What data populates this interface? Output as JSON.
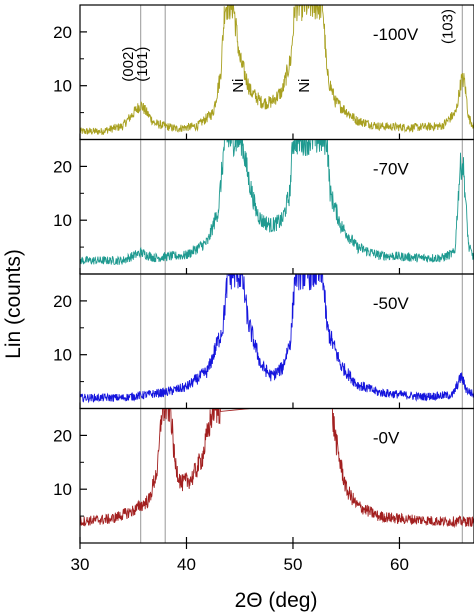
{
  "chart_data": {
    "type": "line",
    "xlabel": "2Θ (deg)",
    "ylabel": "Lin (counts)",
    "xlim": [
      30,
      67
    ],
    "x_ticks": [
      30,
      40,
      50,
      60
    ],
    "x_tick_labels": [
      "30",
      "40",
      "50",
      "60"
    ],
    "panel_ylim": [
      0,
      25
    ],
    "y_ticks": [
      10,
      20
    ],
    "y_tick_labels": [
      "10",
      "20"
    ],
    "grid": false,
    "legend": "none",
    "reference_lines_x": [
      35.7,
      38.0,
      65.9
    ],
    "series": [
      {
        "name": "-100V",
        "color": "#a8a020",
        "points": [
          [
            30,
            1.5
          ],
          [
            32,
            1.5
          ],
          [
            34,
            2.5
          ],
          [
            35.7,
            6.5
          ],
          [
            37,
            3
          ],
          [
            39,
            2
          ],
          [
            41,
            2.5
          ],
          [
            42.5,
            5
          ],
          [
            43.2,
            12
          ],
          [
            43.6,
            25
          ],
          [
            44.4,
            25
          ],
          [
            45,
            15
          ],
          [
            46,
            9
          ],
          [
            47,
            7
          ],
          [
            47.5,
            6.8
          ],
          [
            48,
            7
          ],
          [
            49,
            9
          ],
          [
            49.8,
            15
          ],
          [
            50.2,
            25
          ],
          [
            52.8,
            25
          ],
          [
            53.2,
            12
          ],
          [
            54,
            7
          ],
          [
            56,
            3.5
          ],
          [
            58,
            2.5
          ],
          [
            61,
            2.2
          ],
          [
            64,
            2.5
          ],
          [
            65.3,
            5
          ],
          [
            65.8,
            11
          ],
          [
            66.1,
            11
          ],
          [
            66.5,
            4
          ],
          [
            67,
            2.5
          ]
        ],
        "annotations": [
          {
            "text": "(002)",
            "x": 35.0,
            "y": 14,
            "rotate": -90
          },
          {
            "text": "(101)",
            "x": 36.3,
            "y": 14,
            "rotate": -90
          },
          {
            "text": "Ni",
            "x": 45.3,
            "y": 10,
            "rotate": -90
          },
          {
            "text": "Ni",
            "x": 51.5,
            "y": 10,
            "rotate": -90
          },
          {
            "text": "(103)",
            "x": 65.0,
            "y": 21,
            "rotate": -90
          }
        ]
      },
      {
        "name": "-70V",
        "color": "#1f9a90",
        "points": [
          [
            30,
            2.5
          ],
          [
            34,
            2.5
          ],
          [
            35.7,
            4
          ],
          [
            37,
            3
          ],
          [
            38,
            3.2
          ],
          [
            40,
            3.5
          ],
          [
            42,
            6
          ],
          [
            43,
            12
          ],
          [
            43.6,
            25
          ],
          [
            45.2,
            25
          ],
          [
            45.8,
            18
          ],
          [
            46.5,
            12
          ],
          [
            47,
            10
          ],
          [
            48,
            9
          ],
          [
            49,
            10
          ],
          [
            49.7,
            15
          ],
          [
            50,
            25
          ],
          [
            53.2,
            25
          ],
          [
            53.5,
            15
          ],
          [
            54.5,
            9
          ],
          [
            56,
            5
          ],
          [
            58,
            3.5
          ],
          [
            62,
            3
          ],
          [
            64,
            3
          ],
          [
            65.2,
            4
          ],
          [
            65.7,
            20
          ],
          [
            66,
            20
          ],
          [
            66.5,
            5
          ],
          [
            67,
            3
          ]
        ]
      },
      {
        "name": "-50V",
        "color": "#1515dd",
        "points": [
          [
            30,
            2
          ],
          [
            34,
            2
          ],
          [
            36,
            2.5
          ],
          [
            38,
            3
          ],
          [
            40,
            4
          ],
          [
            42,
            7
          ],
          [
            43.4,
            15
          ],
          [
            43.9,
            25
          ],
          [
            45.2,
            25
          ],
          [
            45.8,
            16
          ],
          [
            47,
            8
          ],
          [
            48,
            6
          ],
          [
            49,
            7.5
          ],
          [
            49.8,
            13
          ],
          [
            50.2,
            25
          ],
          [
            52.8,
            25
          ],
          [
            53.2,
            15
          ],
          [
            54.5,
            8
          ],
          [
            56,
            4.5
          ],
          [
            58,
            3
          ],
          [
            62,
            2.2
          ],
          [
            65,
            2.5
          ],
          [
            65.8,
            6
          ],
          [
            66.3,
            3.5
          ],
          [
            67,
            2.5
          ]
        ]
      },
      {
        "name": "-0V",
        "color": "#a21f1f",
        "points": [
          [
            30,
            4
          ],
          [
            33,
            4.5
          ],
          [
            35,
            6
          ],
          [
            36.5,
            8
          ],
          [
            37.3,
            14
          ],
          [
            37.7,
            25
          ],
          [
            38.5,
            25
          ],
          [
            38.9,
            15
          ],
          [
            39.5,
            11
          ],
          [
            40.5,
            12
          ],
          [
            41.5,
            16
          ],
          [
            42.5,
            25
          ],
          [
            43.5,
            25
          ],
          [
            44,
            25
          ],
          [
            53.6,
            25
          ],
          [
            54.2,
            17
          ],
          [
            55,
            10
          ],
          [
            56,
            7
          ],
          [
            58,
            5
          ],
          [
            60,
            4.5
          ],
          [
            62,
            4.3
          ],
          [
            64,
            4
          ],
          [
            66,
            4
          ],
          [
            67,
            4
          ]
        ],
        "clip_gaps": [
          [
            43.2,
            53.6
          ]
        ]
      }
    ]
  }
}
